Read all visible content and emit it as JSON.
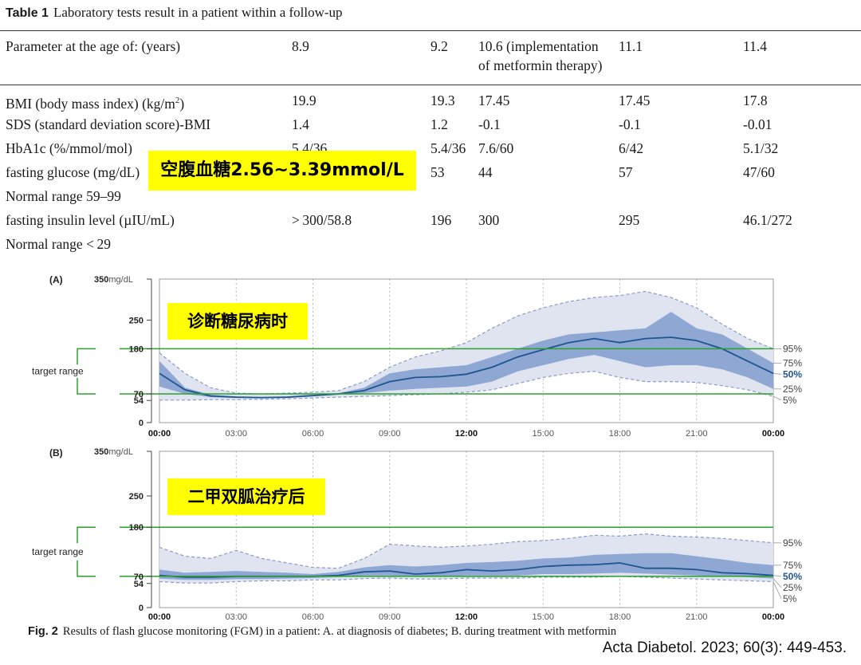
{
  "table": {
    "label": "Table 1",
    "title": "Laboratory tests result in a patient within a follow-up",
    "header": [
      "Parameter at the age of: (years)",
      "8.9",
      "9.2",
      "10.6 (implementation",
      "of metformin therapy)",
      "11.1",
      "11.4"
    ],
    "rows": [
      {
        "param": "BMI (body mass index) (kg/m",
        "sup": "2",
        "param_end": ")",
        "values": [
          "19.9",
          "19.3",
          "17.45",
          "17.45",
          "17.8"
        ]
      },
      {
        "param": "SDS (standard deviation score)-BMI",
        "values": [
          "1.4",
          "1.2",
          "-0.1",
          "-0.1",
          "-0.01"
        ]
      },
      {
        "param": "HbA1c (%/mmol/mol)",
        "values": [
          "5.4/36",
          "5.4/36",
          "7.6/60",
          "6/42",
          "5.1/32"
        ]
      },
      {
        "param": "fasting glucose (mg/dL)",
        "values": [
          "",
          "53",
          "44",
          "57",
          "47/60"
        ]
      },
      {
        "param": "Normal range 59–99",
        "values": []
      },
      {
        "param": "fasting insulin level (µIU/mL)",
        "values": [
          "> 300/58.8",
          "196",
          "300",
          "295",
          "46.1/272"
        ]
      },
      {
        "param": "Normal range < 29",
        "values": []
      }
    ]
  },
  "annotations": {
    "fasting_glucose_note": "空腹血糖2.56~3.39mmol/L",
    "panel_a_note": "诊断糖尿病时",
    "panel_b_note": "二甲双胍治疗后"
  },
  "figure": {
    "label": "Fig. 2",
    "caption": "Results of flash glucose monitoring (FGM) in a patient: A. at diagnosis of diabetes; B. during treatment with metformin",
    "citation": "Acta Diabetol. 2023; 60(3): 449-453."
  },
  "chart_data": [
    {
      "type": "area",
      "panel_label": "(A)",
      "y_unit": "mg/dL",
      "y_ticks": [
        0,
        54,
        70,
        180,
        250,
        350
      ],
      "ylim": [
        0,
        350
      ],
      "x_ticks": [
        "00:00",
        "03:00",
        "06:00",
        "09:00",
        "12:00",
        "15:00",
        "18:00",
        "21:00",
        "00:00"
      ],
      "target_range_label": "target range",
      "target_range": [
        70,
        180
      ],
      "percentile_labels": [
        "95%",
        "75%",
        "50%",
        "25%",
        "5%"
      ],
      "x_hours": [
        0,
        1,
        2,
        3,
        4,
        5,
        6,
        7,
        8,
        9,
        10,
        11,
        12,
        13,
        14,
        15,
        16,
        17,
        18,
        19,
        20,
        21,
        22,
        23,
        24
      ],
      "series": [
        {
          "name": "95%",
          "values": [
            170,
            120,
            85,
            72,
            70,
            72,
            74,
            78,
            100,
            135,
            160,
            175,
            195,
            230,
            260,
            280,
            295,
            305,
            310,
            320,
            305,
            280,
            240,
            205,
            180
          ]
        },
        {
          "name": "75%",
          "values": [
            150,
            85,
            68,
            64,
            62,
            64,
            68,
            72,
            85,
            120,
            130,
            135,
            140,
            160,
            180,
            200,
            215,
            220,
            225,
            230,
            270,
            230,
            215,
            180,
            145
          ]
        },
        {
          "name": "50%",
          "values": [
            120,
            80,
            65,
            62,
            61,
            62,
            66,
            70,
            78,
            100,
            110,
            112,
            118,
            135,
            160,
            178,
            195,
            205,
            195,
            205,
            208,
            200,
            180,
            150,
            120
          ]
        },
        {
          "name": "25%",
          "values": [
            88,
            70,
            62,
            60,
            60,
            60,
            64,
            68,
            72,
            78,
            82,
            85,
            88,
            100,
            125,
            140,
            155,
            165,
            150,
            135,
            140,
            140,
            130,
            110,
            82
          ]
        },
        {
          "name": "5%",
          "values": [
            55,
            55,
            56,
            56,
            57,
            58,
            60,
            62,
            64,
            66,
            68,
            70,
            74,
            80,
            95,
            110,
            120,
            125,
            110,
            100,
            100,
            98,
            90,
            80,
            64
          ]
        }
      ]
    },
    {
      "type": "area",
      "panel_label": "(B)",
      "y_unit": "mg/dL",
      "y_ticks": [
        0,
        54,
        70,
        180,
        250,
        350
      ],
      "ylim": [
        0,
        350
      ],
      "x_ticks": [
        "00:00",
        "03:00",
        "06:00",
        "09:00",
        "12:00",
        "15:00",
        "18:00",
        "21:00",
        "00:00"
      ],
      "target_range_label": "target range",
      "target_range": [
        70,
        180
      ],
      "percentile_labels": [
        "95%",
        "75%",
        "50%",
        "25%",
        "5%"
      ],
      "x_hours": [
        0,
        1,
        2,
        3,
        4,
        5,
        6,
        7,
        8,
        9,
        10,
        11,
        12,
        13,
        14,
        15,
        16,
        17,
        18,
        19,
        20,
        21,
        22,
        23,
        24
      ],
      "series": [
        {
          "name": "95%",
          "values": [
            135,
            115,
            110,
            128,
            110,
            100,
            90,
            88,
            110,
            142,
            138,
            135,
            138,
            142,
            148,
            150,
            155,
            162,
            160,
            165,
            160,
            158,
            155,
            150,
            145
          ]
        },
        {
          "name": "75%",
          "values": [
            85,
            78,
            80,
            82,
            80,
            78,
            75,
            80,
            90,
            95,
            92,
            95,
            100,
            102,
            105,
            110,
            112,
            118,
            120,
            122,
            122,
            115,
            108,
            100,
            95
          ]
        },
        {
          "name": "50%",
          "values": [
            72,
            68,
            68,
            70,
            70,
            70,
            70,
            72,
            80,
            82,
            75,
            78,
            85,
            82,
            85,
            92,
            95,
            96,
            100,
            88,
            88,
            85,
            78,
            76,
            72
          ]
        },
        {
          "name": "25%",
          "values": [
            65,
            62,
            62,
            64,
            64,
            65,
            66,
            68,
            72,
            72,
            70,
            70,
            72,
            72,
            72,
            75,
            75,
            76,
            78,
            76,
            74,
            72,
            70,
            68,
            65
          ]
        },
        {
          "name": "5%",
          "values": [
            58,
            55,
            55,
            58,
            60,
            60,
            62,
            62,
            65,
            66,
            64,
            64,
            66,
            66,
            66,
            68,
            68,
            68,
            70,
            68,
            66,
            64,
            62,
            60,
            58
          ]
        }
      ]
    }
  ],
  "colors": {
    "band_outer": "#dfe4f0",
    "band_inner": "#8ea7d3",
    "median_line": "#1f5591",
    "dashed_line": "#8a9bc6",
    "target_line": "#2ca02c",
    "highlight": "#ffff00"
  }
}
